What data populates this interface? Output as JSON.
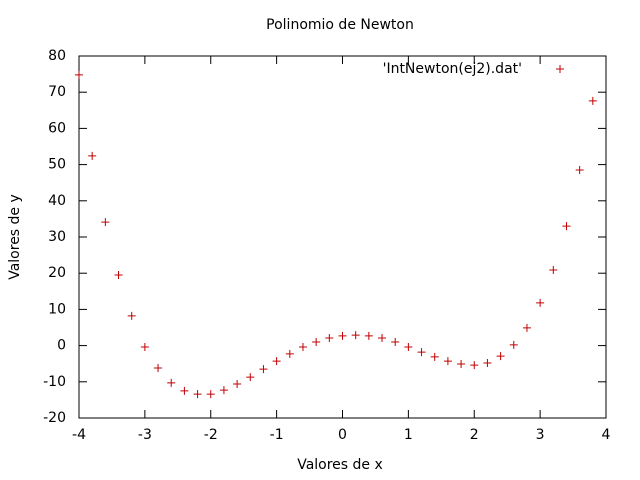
{
  "chart_data": {
    "type": "scatter",
    "title": "Polinomio de Newton",
    "x_label": "Valores de x",
    "y_label": "Valores de y",
    "x": [
      -4,
      -3.8,
      -3.6,
      -3.4,
      -3.2,
      -3,
      -2.8,
      -2.6,
      -2.4,
      -2.2,
      -2,
      -1.8,
      -1.6,
      -1.4,
      -1.2,
      -1,
      -0.8,
      -0.6,
      -0.4,
      -0.2,
      0,
      0.2,
      0.4,
      0.6,
      0.8,
      1,
      1.2,
      1.4,
      1.6,
      1.8,
      2,
      2.2,
      2.4,
      2.6,
      2.8,
      3,
      3.2,
      3.4,
      3.6,
      3.8
    ],
    "series": [
      {
        "name": "'IntNewton(ej2).dat'",
        "color": "#c00000",
        "values": [
          74.8,
          52.4,
          34.1,
          19.5,
          8.2,
          -0.4,
          -6.2,
          -10.3,
          -12.5,
          -13.4,
          -13.4,
          -12.3,
          -10.6,
          -8.7,
          -6.5,
          -4.3,
          -2.3,
          -0.4,
          1.0,
          2.1,
          2.7,
          2.9,
          2.7,
          2.1,
          1.0,
          -0.4,
          -1.8,
          -3.1,
          -4.3,
          -5.1,
          -5.4,
          -4.8,
          -2.9,
          0.2,
          4.9,
          11.8,
          20.9,
          33.0,
          48.5,
          67.6
        ]
      }
    ],
    "xlim": [
      -4,
      4
    ],
    "xticks": [
      -4,
      -3,
      -2,
      -1,
      0,
      1,
      2,
      3,
      4
    ],
    "ylim": [
      -20,
      80
    ],
    "yticks": [
      -20,
      -10,
      0,
      10,
      20,
      30,
      40,
      50,
      60,
      70,
      80
    ],
    "grid": false,
    "legend": "top-right"
  }
}
